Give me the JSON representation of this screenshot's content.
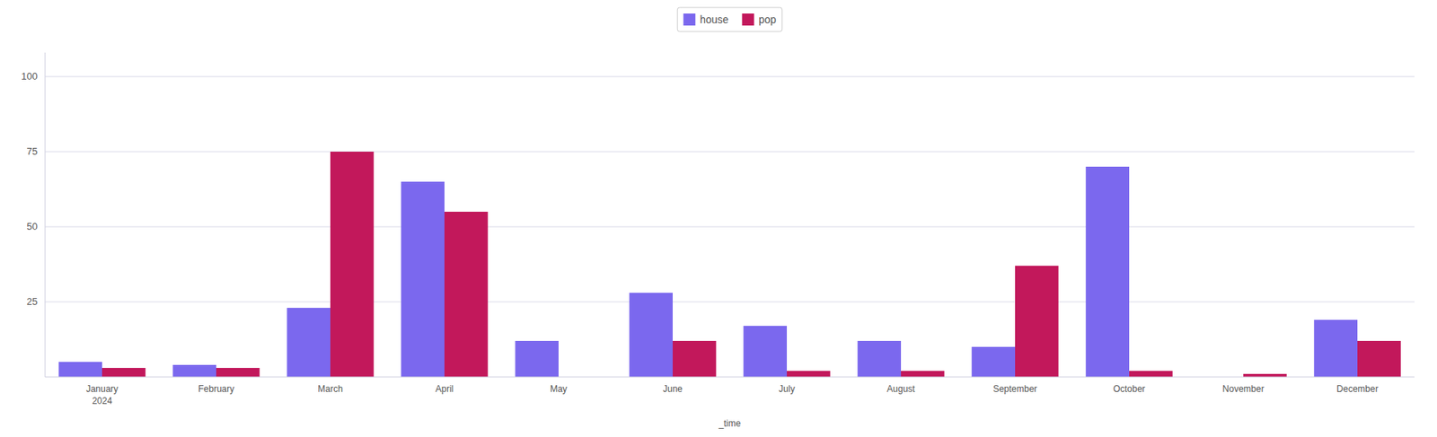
{
  "chart_data": {
    "type": "bar",
    "categories": [
      "January\n2024",
      "February",
      "March",
      "April",
      "May",
      "June",
      "July",
      "August",
      "September",
      "October",
      "November",
      "December"
    ],
    "series": [
      {
        "name": "house",
        "color": "#7B68EE",
        "values": [
          5,
          4,
          23,
          65,
          12,
          28,
          17,
          12,
          10,
          70,
          0,
          19
        ]
      },
      {
        "name": "pop",
        "color": "#C2185B",
        "values": [
          3,
          3,
          75,
          55,
          0,
          12,
          2,
          2,
          37,
          2,
          1,
          12
        ]
      }
    ],
    "x_label": "_time",
    "ylim": [
      0,
      108
    ],
    "yticks": [
      25,
      50,
      75,
      100
    ],
    "grid": true,
    "legend": "top"
  }
}
